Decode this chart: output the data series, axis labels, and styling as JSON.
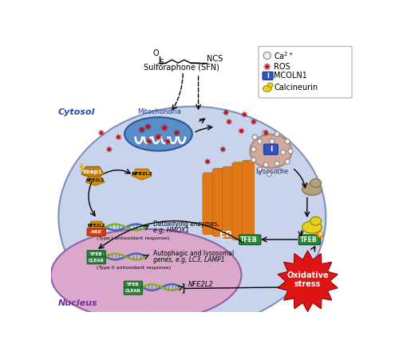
{
  "fig_width": 5.0,
  "fig_height": 4.41,
  "dpi": 100,
  "bg_color": "#ffffff",
  "cell_fill": "#c8d4ec",
  "nucleus_fill": "#dba8cc",
  "cytosol_label": "Cytosol",
  "nucleus_label": "Nucleus",
  "mitochondria_label": "Mitochondria",
  "lysosome_label": "Lysosome",
  "er_label": "ER",
  "sfn_label": "Sulforaphone (SFN)",
  "oxidative_stress_label": "Oxidative stress",
  "detox_label1": "Detoxifying enzymes,",
  "detox_label2": "e.g, HMOX1",
  "detox_sub": "(Type I antioxidant response)",
  "autophagy_label1": "Autophagic and lysosomal",
  "autophagy_label2": "genes, e.g, LC3, LAMP1",
  "autophagy_sub": "(Type II antioxidant response)",
  "mito_color": "#5a8ec8",
  "mito_edge": "#2a5898",
  "er_color": "#e07818",
  "lysosome_color_fill": "#d4a898",
  "lysosome_color_edge": "#b08878",
  "calcineurin_inactive": "#b0a080",
  "calcineurin_active": "#e8d020",
  "tfeb_green": "#2a8a3a",
  "nfe2l2_gold": "#d4900a",
  "keap1_brown": "#c08010",
  "are_orange": "#d04010",
  "ros_red": "#cc1010",
  "dna_blue": "#3a6ab8",
  "dna_green": "#78b820"
}
